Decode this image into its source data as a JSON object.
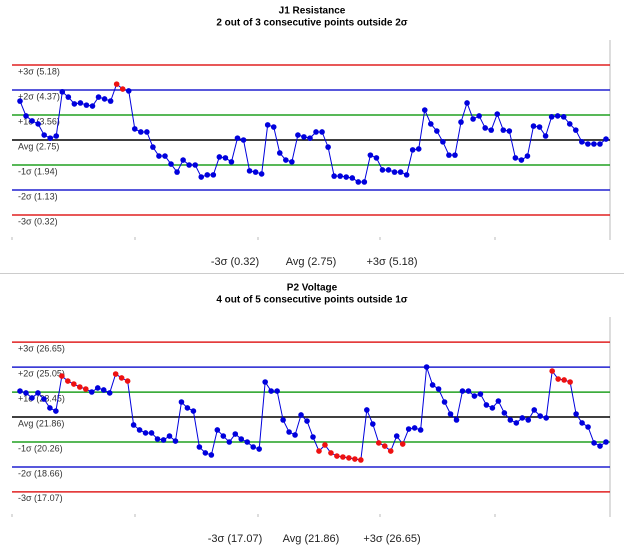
{
  "chart_data": [
    {
      "type": "line",
      "title": "J1 Resistance",
      "subtitle": "2 out of 3 consecutive points outside 2σ",
      "ylim": [
        -0.49,
        5.99
      ],
      "control_lines": [
        {
          "label": "+3σ (5.18)",
          "value": 5.18,
          "color": "#e02020"
        },
        {
          "label": "+2σ (4.37)",
          "value": 4.37,
          "color": "#2020d0"
        },
        {
          "label": "+1σ (3.56)",
          "value": 3.56,
          "color": "#20a020"
        },
        {
          "label": "Avg (2.75)",
          "value": 2.75,
          "color": "#000000"
        },
        {
          "label": "-1σ (1.94)",
          "value": 1.94,
          "color": "#20a020"
        },
        {
          "label": "-2σ (1.13)",
          "value": 1.13,
          "color": "#2020d0"
        },
        {
          "label": "-3σ (0.32)",
          "value": 0.32,
          "color": "#e02020"
        }
      ],
      "x_axis_labels": [
        "-3σ (0.32)",
        "Avg (2.75)",
        "+3σ (5.18)"
      ],
      "color": "#0000dd",
      "flag_color": "#ee1111",
      "values": [
        4.01,
        3.53,
        3.37,
        3.27,
        2.91,
        2.81,
        2.88,
        4.31,
        4.14,
        3.92,
        3.95,
        3.88,
        3.85,
        4.14,
        4.08,
        4.01,
        4.56,
        4.4,
        4.34,
        3.11,
        3.01,
        3.01,
        2.52,
        2.23,
        2.23,
        1.97,
        1.71,
        2.1,
        1.94,
        1.94,
        1.55,
        1.62,
        1.62,
        2.2,
        2.17,
        2.04,
        2.81,
        2.75,
        1.75,
        1.71,
        1.65,
        3.24,
        3.17,
        2.33,
        2.1,
        2.04,
        2.91,
        2.85,
        2.81,
        3.01,
        3.01,
        2.52,
        1.58,
        1.58,
        1.55,
        1.52,
        1.39,
        1.39,
        2.26,
        2.17,
        1.78,
        1.78,
        1.71,
        1.71,
        1.62,
        2.43,
        2.46,
        3.72,
        3.27,
        3.04,
        2.69,
        2.26,
        2.26,
        3.33,
        3.95,
        3.43,
        3.53,
        3.14,
        3.07,
        3.59,
        3.07,
        3.04,
        2.17,
        2.1,
        2.23,
        3.2,
        3.17,
        2.88,
        3.5,
        3.53,
        3.5,
        3.27,
        3.07,
        2.69,
        2.62,
        2.62,
        2.62,
        2.78
      ],
      "flagged": [
        false,
        false,
        false,
        false,
        false,
        false,
        false,
        false,
        false,
        false,
        false,
        false,
        false,
        false,
        false,
        false,
        true,
        true,
        false,
        false,
        false,
        false,
        false,
        false,
        false,
        false,
        false,
        false,
        false,
        false,
        false,
        false,
        false,
        false,
        false,
        false,
        false,
        false,
        false,
        false,
        false,
        false,
        false,
        false,
        false,
        false,
        false,
        false,
        false,
        false,
        false,
        false,
        false,
        false,
        false,
        false,
        false,
        false,
        false,
        false,
        false,
        false,
        false,
        false,
        false,
        false,
        false,
        false,
        false,
        false,
        false,
        false,
        false,
        false,
        false,
        false,
        false,
        false,
        false,
        false,
        false,
        false,
        false,
        false,
        false,
        false,
        false,
        false,
        false,
        false,
        false,
        false,
        false,
        false,
        false,
        false,
        false,
        false
      ]
    },
    {
      "type": "line",
      "title": "P2 Voltage",
      "subtitle": "4 out of 5 consecutive points outside 1σ",
      "ylim": [
        15.46,
        28.26
      ],
      "control_lines": [
        {
          "label": "+3σ (26.65)",
          "value": 26.65,
          "color": "#e02020"
        },
        {
          "label": "+2σ (25.05)",
          "value": 25.05,
          "color": "#2020d0"
        },
        {
          "label": "+1σ (23.45)",
          "value": 23.45,
          "color": "#20a020"
        },
        {
          "label": "Avg (21.86)",
          "value": 21.86,
          "color": "#000000"
        },
        {
          "label": "-1σ (20.26)",
          "value": 20.26,
          "color": "#20a020"
        },
        {
          "label": "-2σ (18.66)",
          "value": 18.66,
          "color": "#2020d0"
        },
        {
          "label": "-3σ (17.07)",
          "value": 17.07,
          "color": "#e02020"
        }
      ],
      "x_axis_labels": [
        "-3σ (17.07)",
        "Avg (21.86)",
        "+3σ (26.65)"
      ],
      "color": "#0000dd",
      "flag_color": "#ee1111",
      "values": [
        23.52,
        23.4,
        23.08,
        23.4,
        23.01,
        22.44,
        22.24,
        24.48,
        24.16,
        23.97,
        23.78,
        23.65,
        23.46,
        23.72,
        23.59,
        23.4,
        24.61,
        24.36,
        24.16,
        21.35,
        21.03,
        20.84,
        20.84,
        20.45,
        20.39,
        20.64,
        20.32,
        22.82,
        22.44,
        22.24,
        19.94,
        19.56,
        19.43,
        21.03,
        20.64,
        20.26,
        20.77,
        20.45,
        20.26,
        19.94,
        19.81,
        24.1,
        23.52,
        23.52,
        21.67,
        20.9,
        20.71,
        21.99,
        21.6,
        20.58,
        19.68,
        20.07,
        19.56,
        19.36,
        19.3,
        19.24,
        19.17,
        19.11,
        22.31,
        21.41,
        20.2,
        20.0,
        19.68,
        20.64,
        20.13,
        21.09,
        21.16,
        21.03,
        25.06,
        23.91,
        23.65,
        22.82,
        22.05,
        21.67,
        23.52,
        23.52,
        23.2,
        23.33,
        22.63,
        22.44,
        22.88,
        22.12,
        21.67,
        21.48,
        21.8,
        21.67,
        22.31,
        21.92,
        21.8,
        24.8,
        24.29,
        24.23,
        24.1,
        22.05,
        21.48,
        21.22,
        20.2,
        20.0,
        20.26
      ],
      "flagged": [
        false,
        false,
        false,
        false,
        false,
        false,
        false,
        true,
        true,
        true,
        true,
        true,
        false,
        false,
        false,
        false,
        true,
        true,
        true,
        false,
        false,
        false,
        false,
        false,
        false,
        false,
        false,
        false,
        false,
        false,
        false,
        false,
        false,
        false,
        false,
        false,
        false,
        false,
        false,
        false,
        false,
        false,
        false,
        false,
        false,
        false,
        false,
        false,
        false,
        false,
        true,
        true,
        true,
        true,
        true,
        true,
        true,
        true,
        false,
        false,
        true,
        true,
        true,
        false,
        true,
        false,
        false,
        false,
        false,
        false,
        false,
        false,
        false,
        false,
        false,
        false,
        false,
        false,
        false,
        false,
        false,
        false,
        false,
        false,
        false,
        false,
        false,
        false,
        false,
        true,
        true,
        true,
        true,
        false,
        false,
        false,
        false,
        false,
        false
      ]
    }
  ]
}
